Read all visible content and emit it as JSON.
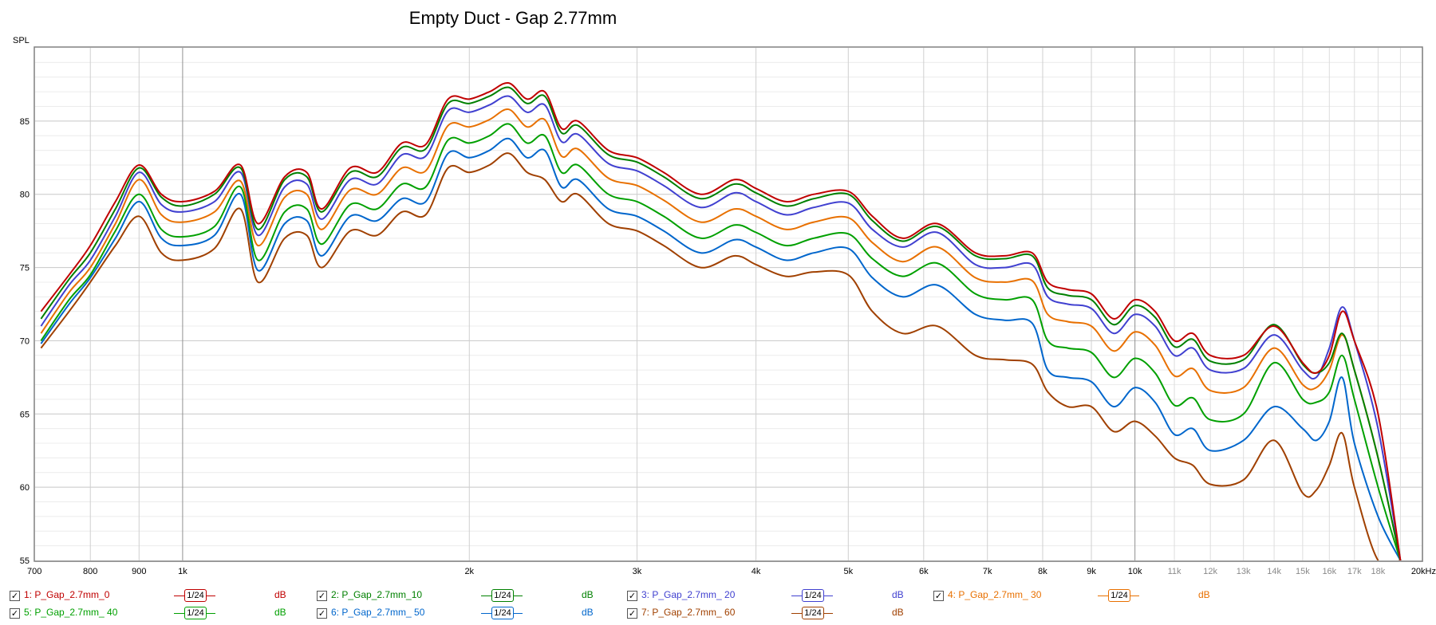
{
  "chart_data": {
    "type": "line",
    "title": "Empty Duct - Gap 2.77mm",
    "ylabel": "SPL",
    "xlabel": "",
    "x_scale": "log",
    "xlim": [
      700,
      20000
    ],
    "ylim": [
      55,
      90
    ],
    "grid": true,
    "x_ticks": [
      {
        "value": 700,
        "label": "700"
      },
      {
        "value": 800,
        "label": "800"
      },
      {
        "value": 900,
        "label": "900"
      },
      {
        "value": 1000,
        "label": "1k"
      },
      {
        "value": 2000,
        "label": "2k"
      },
      {
        "value": 3000,
        "label": "3k"
      },
      {
        "value": 4000,
        "label": "4k"
      },
      {
        "value": 5000,
        "label": "5k"
      },
      {
        "value": 6000,
        "label": "6k"
      },
      {
        "value": 7000,
        "label": "7k"
      },
      {
        "value": 8000,
        "label": "8k"
      },
      {
        "value": 9000,
        "label": "9k"
      },
      {
        "value": 10000,
        "label": "10k"
      },
      {
        "value": 11000,
        "label": "11k",
        "minor": true
      },
      {
        "value": 12000,
        "label": "12k",
        "minor": true
      },
      {
        "value": 13000,
        "label": "13k",
        "minor": true
      },
      {
        "value": 14000,
        "label": "14k",
        "minor": true
      },
      {
        "value": 15000,
        "label": "15k",
        "minor": true
      },
      {
        "value": 16000,
        "label": "16k",
        "minor": true
      },
      {
        "value": 17000,
        "label": "17k",
        "minor": true
      },
      {
        "value": 18000,
        "label": "18k",
        "minor": true
      },
      {
        "value": 20000,
        "label": "20kHz"
      }
    ],
    "y_ticks": [
      55,
      60,
      65,
      70,
      75,
      80,
      85
    ],
    "x": [
      710,
      760,
      800,
      850,
      900,
      950,
      1000,
      1080,
      1150,
      1200,
      1280,
      1350,
      1400,
      1500,
      1600,
      1700,
      1800,
      1900,
      2000,
      2100,
      2200,
      2300,
      2400,
      2500,
      2600,
      2800,
      3000,
      3200,
      3500,
      3800,
      4000,
      4300,
      4600,
      5000,
      5300,
      5700,
      6200,
      6800,
      7300,
      7800,
      8100,
      8500,
      9000,
      9500,
      10000,
      10500,
      11000,
      11500,
      12000,
      13000,
      14000,
      15000,
      15500,
      16000,
      16500,
      17000,
      18000,
      19000
    ],
    "series": [
      {
        "name": "1: P_Gap_2.7mm_0",
        "color": "#c00000",
        "values": [
          72,
          74.5,
          76.5,
          79.5,
          82,
          80,
          79.5,
          80.2,
          82,
          78,
          81.2,
          81.5,
          79,
          81.8,
          81.5,
          83.5,
          83.4,
          86.5,
          86.5,
          87,
          87.6,
          86.5,
          87,
          84.5,
          85,
          83,
          82.5,
          81.5,
          80,
          81,
          80.4,
          79.5,
          80,
          80.2,
          78.5,
          77,
          78,
          76,
          75.8,
          76,
          74,
          73.5,
          73.2,
          71.5,
          72.8,
          72,
          70,
          70.5,
          69,
          69,
          71,
          68.5,
          67.8,
          69,
          72,
          70,
          65,
          55
        ]
      },
      {
        "name": "2: P_Gap_2.7mm_10",
        "color": "#008000",
        "values": [
          71.5,
          74.2,
          76,
          79,
          81.8,
          79.8,
          79.2,
          80,
          81.8,
          77.6,
          81,
          81.2,
          78.8,
          81.5,
          81.2,
          83.2,
          83.1,
          86.2,
          86.2,
          86.7,
          87.3,
          86.2,
          86.7,
          84.2,
          84.7,
          82.7,
          82.2,
          81.2,
          79.7,
          80.7,
          80.1,
          79.2,
          79.7,
          80,
          78.2,
          76.8,
          77.8,
          75.8,
          75.6,
          75.8,
          73.6,
          73.1,
          72.8,
          71.1,
          72.4,
          71.6,
          69.6,
          70.1,
          68.6,
          68.7,
          71.1,
          68.4,
          67.8,
          68.5,
          70.5,
          68,
          62,
          55
        ]
      },
      {
        "name": "3: P_Gap_2.7mm_ 20",
        "color": "#4040d0",
        "values": [
          71,
          73.8,
          75.5,
          78.5,
          81.5,
          79.3,
          78.8,
          79.5,
          81.5,
          77.2,
          80.5,
          80.7,
          78.3,
          81,
          80.7,
          82.7,
          82.6,
          85.7,
          85.6,
          86.1,
          86.7,
          85.6,
          86.1,
          83.6,
          84.1,
          82.1,
          81.6,
          80.6,
          79.1,
          80.1,
          79.5,
          78.6,
          79.1,
          79.4,
          77.6,
          76.4,
          77.4,
          75.2,
          75,
          75.2,
          73,
          72.5,
          72.2,
          70.5,
          71.8,
          71,
          69,
          69.5,
          68,
          68.1,
          70.4,
          68,
          67.5,
          69.5,
          72.3,
          70,
          64,
          55
        ]
      },
      {
        "name": "4: P_Gap_2.7mm_ 30",
        "color": "#e87000",
        "values": [
          70.5,
          73.3,
          75,
          78,
          81,
          78.6,
          78.1,
          78.8,
          80.9,
          76.5,
          79.8,
          80,
          77.6,
          80.3,
          80,
          81.8,
          81.6,
          84.7,
          84.6,
          85.1,
          85.8,
          84.6,
          85.1,
          82.6,
          83.1,
          81.1,
          80.6,
          79.6,
          78.1,
          79,
          78.5,
          77.6,
          78.1,
          78.4,
          76.7,
          75.4,
          76.4,
          74.3,
          74,
          74.1,
          71.8,
          71.3,
          71,
          69.3,
          70.6,
          69.7,
          67.6,
          68.1,
          66.6,
          66.8,
          69.5,
          67,
          66.8,
          68,
          70.4,
          68,
          62,
          55
        ]
      },
      {
        "name": "5: P_Gap_2.7mm_ 40",
        "color": "#00a000",
        "values": [
          70,
          72.8,
          74.5,
          77.5,
          80,
          77.6,
          77.1,
          77.8,
          80.5,
          75.5,
          78.8,
          79,
          76.6,
          79.3,
          79,
          80.7,
          80.5,
          83.7,
          83.5,
          84,
          84.8,
          83.5,
          84,
          81.5,
          82,
          80,
          79.5,
          78.5,
          77,
          77.9,
          77.4,
          76.5,
          77,
          77.3,
          75.6,
          74.4,
          75.3,
          73.2,
          72.8,
          72.8,
          70,
          69.5,
          69.2,
          67.5,
          68.8,
          67.8,
          65.6,
          66.1,
          64.6,
          65,
          68.5,
          66,
          65.8,
          66.5,
          69,
          66,
          60,
          55
        ]
      },
      {
        "name": "6: P_Gap_2.7mm_ 50",
        "color": "#0066cc",
        "values": [
          69.8,
          72.5,
          74.3,
          77,
          79.5,
          77,
          76.5,
          77.2,
          80,
          74.8,
          78,
          78.2,
          75.8,
          78.5,
          78.2,
          79.7,
          79.5,
          82.8,
          82.5,
          83,
          83.8,
          82.5,
          83,
          80.5,
          81,
          79,
          78.5,
          77.5,
          76,
          76.9,
          76.4,
          75.5,
          76,
          76.3,
          74.3,
          73,
          73.8,
          71.8,
          71.4,
          71.2,
          68,
          67.5,
          67.2,
          65.5,
          66.8,
          65.8,
          63.6,
          64,
          62.5,
          63.2,
          65.5,
          64,
          63.2,
          64.5,
          67.5,
          63,
          58,
          55
        ]
      },
      {
        "name": "7: P_Gap_2.7mm_ 60",
        "color": "#a04000",
        "values": [
          69.5,
          72,
          74,
          76.5,
          78.5,
          76,
          75.5,
          76.3,
          79,
          74,
          77,
          77.2,
          75,
          77.5,
          77.2,
          78.8,
          78.6,
          81.8,
          81.5,
          82,
          82.8,
          81.5,
          81,
          79.5,
          80,
          78,
          77.5,
          76.5,
          75,
          75.8,
          75.2,
          74.4,
          74.7,
          74.5,
          72,
          70.5,
          71,
          69,
          68.7,
          68.4,
          66.5,
          65.5,
          65.5,
          63.8,
          64.5,
          63.5,
          62,
          61.5,
          60.2,
          60.5,
          63.2,
          59.6,
          59.8,
          61.5,
          63.7,
          60,
          55,
          55
        ]
      }
    ]
  },
  "legend": [
    {
      "label": "1: P_Gap_2.7mm_0",
      "color": "#c00000",
      "smoothing": "1/24",
      "unit": "dB",
      "checked": true
    },
    {
      "label": "2: P_Gap_2.7mm_10",
      "color": "#008000",
      "smoothing": "1/24",
      "unit": "dB",
      "checked": true
    },
    {
      "label": "3: P_Gap_2.7mm_ 20",
      "color": "#4040d0",
      "smoothing": "1/24",
      "unit": "dB",
      "checked": true
    },
    {
      "label": "4: P_Gap_2.7mm_ 30",
      "color": "#e87000",
      "smoothing": "1/24",
      "unit": "dB",
      "checked": true
    },
    {
      "label": "5: P_Gap_2.7mm_ 40",
      "color": "#00a000",
      "smoothing": "1/24",
      "unit": "dB",
      "checked": true
    },
    {
      "label": "6: P_Gap_2.7mm_ 50",
      "color": "#0066cc",
      "smoothing": "1/24",
      "unit": "dB",
      "checked": true
    },
    {
      "label": "7: P_Gap_2.7mm_ 60",
      "color": "#a04000",
      "smoothing": "1/24",
      "unit": "dB",
      "checked": true
    }
  ],
  "check_glyph": "✓"
}
